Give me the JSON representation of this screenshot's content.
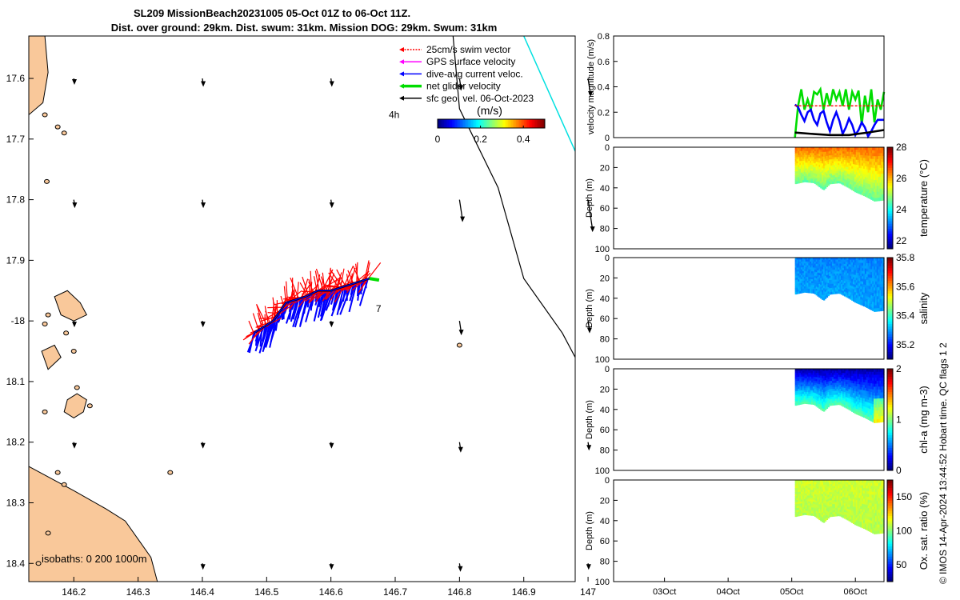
{
  "title_line1": "SL209 MissionBeach20231005 05-Oct 01Z to 06-Oct 11Z.",
  "title_line2": "Dist. over ground: 29km. Dist. swum: 31km. Mission DOG: 29km. Swum: 31km",
  "copyright": "© IMOS 14-Apr-2024 13:44:52 Hobart time. QC flags 1  2",
  "colors": {
    "land": "#f9c89a",
    "swim_vector": "#ff0000",
    "gps_velocity": "#ff00ff",
    "current_vector": "#0000ff",
    "net_velocity": "#00dd00",
    "geo_velocity": "#000000",
    "track_line": "#00e0e0"
  },
  "chart_data": [
    {
      "type": "map",
      "name": "glider-track-map",
      "xlim": [
        146.13,
        146.98
      ],
      "ylim": [
        -18.43,
        -17.53
      ],
      "xticks": [
        146.2,
        146.3,
        146.4,
        146.5,
        146.6,
        146.7,
        146.8,
        146.9,
        147
      ],
      "xtick_labels": [
        "146.2",
        "146.3",
        "146.4",
        "146.5",
        "146.6",
        "146.7",
        "146.8",
        "146.9",
        "147"
      ],
      "yticks": [
        -17.6,
        -17.7,
        -17.8,
        -17.9,
        -18.0,
        -18.1,
        -18.2,
        -18.3,
        -18.4
      ],
      "ytick_labels": [
        "17.6",
        "17.7",
        "17.8",
        "17.9",
        "-18",
        "18.1",
        "18.2",
        "18.3",
        "18.4"
      ],
      "legend": [
        {
          "label": "25cm/s swim vector",
          "color": "#ff0000"
        },
        {
          "label": "GPS surface velocity",
          "color": "#ff00ff"
        },
        {
          "label": "dive-avg current veloc.",
          "color": "#0000ff"
        },
        {
          "label": "net glider velocity",
          "color": "#00dd00"
        },
        {
          "label": "sfc geo. vel. 06-Oct-2023",
          "color": "#000000"
        }
      ],
      "colorbar": {
        "label": "(m/s)",
        "ticks": [
          0,
          0.2,
          0.4
        ],
        "tick_labels": [
          "0",
          "0.2",
          "0.4"
        ],
        "range": [
          0,
          0.5
        ],
        "colormap": "jet"
      },
      "isobaths_label": "isobaths: 0   200  1000m",
      "annotations": [
        {
          "text": "4h",
          "lon": 146.69,
          "lat": -17.66
        },
        {
          "text": "7",
          "lon": 146.67,
          "lat": -17.98
        }
      ],
      "glider_track": [
        [
          146.48,
          -18.02
        ],
        [
          146.51,
          -18.0
        ],
        [
          146.53,
          -17.97
        ],
        [
          146.56,
          -17.96
        ],
        [
          146.58,
          -17.95
        ],
        [
          146.6,
          -17.95
        ],
        [
          146.63,
          -17.94
        ],
        [
          146.66,
          -17.93
        ]
      ],
      "isobath_200m": [
        [
          146.79,
          -17.53
        ],
        [
          146.8,
          -17.65
        ],
        [
          146.86,
          -17.78
        ],
        [
          146.9,
          -17.93
        ],
        [
          146.96,
          -18.02
        ],
        [
          146.98,
          -18.06
        ]
      ],
      "track_line": [
        [
          146.9,
          -17.53
        ],
        [
          146.98,
          -17.72
        ]
      ],
      "geo_vectors": [
        [
          146.2,
          -17.6,
          0.02
        ],
        [
          146.4,
          -17.6,
          0.03
        ],
        [
          146.6,
          -17.6,
          0.03
        ],
        [
          146.8,
          -17.6,
          0.05
        ],
        [
          147.0,
          -17.6,
          0.08
        ],
        [
          146.2,
          -17.8,
          0.03
        ],
        [
          146.4,
          -17.8,
          0.03
        ],
        [
          146.6,
          -17.8,
          0.03
        ],
        [
          146.8,
          -17.8,
          0.1
        ],
        [
          147.0,
          -17.8,
          0.15
        ],
        [
          146.2,
          -18.0,
          0.02
        ],
        [
          146.4,
          -18.0,
          0.02
        ],
        [
          146.6,
          -18.0,
          0.02
        ],
        [
          146.8,
          -18.0,
          0.06
        ],
        [
          147.0,
          -18.0,
          0.05
        ],
        [
          146.2,
          -18.2,
          0.02
        ],
        [
          146.4,
          -18.2,
          0.02
        ],
        [
          146.6,
          -18.2,
          0.02
        ],
        [
          146.8,
          -18.2,
          0.04
        ],
        [
          147.0,
          -18.2,
          0.03
        ],
        [
          146.4,
          -18.4,
          0.02
        ],
        [
          146.6,
          -18.4,
          0.02
        ],
        [
          146.8,
          -18.4,
          0.03
        ],
        [
          147.0,
          -18.4,
          0.02
        ]
      ]
    },
    {
      "type": "line",
      "name": "velocity-panel",
      "ylabel": "velocity magnitude (m/s)",
      "ylim": [
        0,
        0.8
      ],
      "yticks": [
        0,
        0.2,
        0.4,
        0.6,
        0.8
      ],
      "ytick_labels": [
        "0",
        "0.2",
        "0.4",
        "0.6",
        "0.8"
      ],
      "xlim": [
        2.2,
        6.45
      ],
      "x_unit": "days (Oct 2023)",
      "series": [
        {
          "color": "#00dd00",
          "x": [
            5.05,
            5.1,
            5.15,
            5.2,
            5.25,
            5.3,
            5.35,
            5.4,
            5.45,
            5.5,
            5.55,
            5.6,
            5.65,
            5.7,
            5.75,
            5.8,
            5.85,
            5.9,
            5.95,
            6.0,
            6.05,
            6.1,
            6.15,
            6.2,
            6.25,
            6.3,
            6.35,
            6.4,
            6.45
          ],
          "y": [
            0.0,
            0.25,
            0.38,
            0.22,
            0.3,
            0.22,
            0.36,
            0.34,
            0.38,
            0.22,
            0.35,
            0.25,
            0.38,
            0.3,
            0.36,
            0.25,
            0.38,
            0.22,
            0.36,
            0.3,
            0.37,
            0.1,
            0.33,
            0.2,
            0.38,
            0.12,
            0.3,
            0.22,
            0.36
          ]
        },
        {
          "color": "#0000ff",
          "x": [
            5.05,
            5.1,
            5.15,
            5.2,
            5.25,
            5.3,
            5.35,
            5.4,
            5.45,
            5.5,
            5.55,
            5.6,
            5.65,
            5.7,
            5.75,
            5.8,
            5.85,
            5.9,
            5.95,
            6.0,
            6.05,
            6.1,
            6.15,
            6.2,
            6.25,
            6.3,
            6.35,
            6.4,
            6.45
          ],
          "y": [
            0.26,
            0.24,
            0.18,
            0.13,
            0.2,
            0.22,
            0.14,
            0.1,
            0.19,
            0.21,
            0.12,
            0.05,
            0.14,
            0.2,
            0.13,
            0.03,
            0.08,
            0.15,
            0.1,
            0.02,
            0.06,
            0.12,
            0.08,
            0.01,
            0.05,
            0.1,
            0.14,
            0.14,
            0.14
          ]
        },
        {
          "color": "#ff0000",
          "x": [
            5.05,
            5.2,
            5.4,
            5.6,
            5.8,
            6.0,
            6.2,
            6.45
          ],
          "y": [
            0.25,
            0.25,
            0.25,
            0.25,
            0.25,
            0.25,
            0.25,
            0.25
          ]
        },
        {
          "color": "#000000",
          "x": [
            5.05,
            5.3,
            5.6,
            5.9,
            6.2,
            6.45
          ],
          "y": [
            0.04,
            0.03,
            0.02,
            0.02,
            0.04,
            0.06
          ]
        }
      ]
    },
    {
      "type": "heatmap",
      "name": "temperature-panel",
      "ylabel": "Depth (m)",
      "colorbar_label": "temperature (°C)",
      "ylim": [
        0,
        100
      ],
      "yticks": [
        0,
        20,
        40,
        60,
        80,
        100
      ],
      "ytick_labels": [
        "0",
        "20",
        "40",
        "60",
        "80",
        "100"
      ],
      "clim": [
        21.5,
        28
      ],
      "cticks": [
        22,
        24,
        26,
        28
      ],
      "ctick_labels": [
        "22",
        "24",
        "26",
        "28"
      ],
      "surface_value": 26.5,
      "bottom_value": 24.6
    },
    {
      "type": "heatmap",
      "name": "salinity-panel",
      "ylabel": "Depth (m)",
      "colorbar_label": "salinity",
      "ylim": [
        0,
        100
      ],
      "yticks": [
        0,
        20,
        40,
        60,
        80,
        100
      ],
      "ytick_labels": [
        "0",
        "20",
        "40",
        "60",
        "80",
        "100"
      ],
      "clim": [
        35.1,
        35.8
      ],
      "cticks": [
        35.2,
        35.4,
        35.6,
        35.8
      ],
      "ctick_labels": [
        "35.2",
        "35.4",
        "35.6",
        "35.8"
      ],
      "surface_value": 35.28,
      "bottom_value": 35.3
    },
    {
      "type": "heatmap",
      "name": "chlorophyll-panel",
      "ylabel": "Depth (m)",
      "colorbar_label": "chl-a (mg m-3)",
      "ylim": [
        0,
        100
      ],
      "yticks": [
        0,
        20,
        40,
        60,
        80,
        100
      ],
      "ytick_labels": [
        "0",
        "20",
        "40",
        "60",
        "80",
        "100"
      ],
      "clim": [
        0,
        2
      ],
      "cticks": [
        0,
        1,
        2
      ],
      "ctick_labels": [
        "0",
        "1",
        "2"
      ],
      "surface_value": 0.1,
      "bottom_value": 0.9
    },
    {
      "type": "heatmap",
      "name": "oxygen-panel",
      "ylabel": "Depth (m)",
      "colorbar_label": "Ox. sat. ratio (%)",
      "ylim": [
        0,
        100
      ],
      "yticks": [
        0,
        20,
        40,
        60,
        80,
        100
      ],
      "ytick_labels": [
        "0",
        "20",
        "40",
        "60",
        "80",
        "100"
      ],
      "clim": [
        25,
        175
      ],
      "cticks": [
        50,
        100,
        150
      ],
      "ctick_labels": [
        "50",
        "100",
        "150"
      ],
      "surface_value": 112,
      "bottom_value": 108,
      "xticks": [
        3,
        4,
        5,
        6
      ],
      "xtick_labels": [
        "03Oct",
        "04Oct",
        "05Oct",
        "06Oct"
      ]
    }
  ],
  "section_depth_profile": {
    "x_start": 5.05,
    "x_end": 6.45,
    "bottom_depth": [
      [
        5.05,
        36
      ],
      [
        5.2,
        34
      ],
      [
        5.35,
        35
      ],
      [
        5.5,
        42
      ],
      [
        5.6,
        36
      ],
      [
        5.75,
        35
      ],
      [
        5.9,
        40
      ],
      [
        6.0,
        44
      ],
      [
        6.15,
        48
      ],
      [
        6.3,
        53
      ],
      [
        6.45,
        52
      ]
    ]
  }
}
